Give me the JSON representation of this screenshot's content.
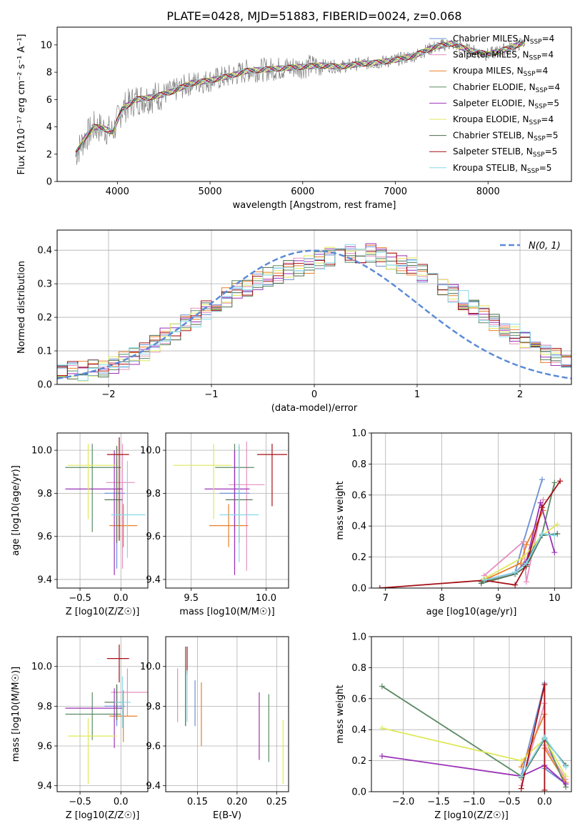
{
  "figure_title": "PLATE=0428, MJD=51883, FIBERID=0024, z=0.068",
  "model_legend": [
    {
      "label": "Chabrier MILES, N",
      "sub": "SSP",
      "tail": "=4",
      "color": "#6a8fd4"
    },
    {
      "label": "Salpeter MILES, N",
      "sub": "SSP",
      "tail": "=4",
      "color": "#e58fbf"
    },
    {
      "label": "Kroupa MILES, N",
      "sub": "SSP",
      "tail": "=4",
      "color": "#e87f27"
    },
    {
      "label": "Chabrier ELODIE, N",
      "sub": "SSP",
      "tail": "=4",
      "color": "#5a8a64"
    },
    {
      "label": "Salpeter ELODIE, N",
      "sub": "SSP",
      "tail": "=5",
      "color": "#9b32b6"
    },
    {
      "label": "Kroupa ELODIE, N",
      "sub": "SSP",
      "tail": "=4",
      "color": "#dfe85a"
    },
    {
      "label": "Chabrier STELIB, N",
      "sub": "SSP",
      "tail": "=5",
      "color": "#4c6b4c"
    },
    {
      "label": "Salpeter STELIB, N",
      "sub": "SSP",
      "tail": "=5",
      "color": "#a50f15"
    },
    {
      "label": "Kroupa STELIB, N",
      "sub": "SSP",
      "tail": "=5",
      "color": "#86d8e8"
    }
  ],
  "chart_data": [
    {
      "id": "spectrum",
      "type": "line",
      "xlabel": "wavelength [Angstrom, rest frame]",
      "ylabel": "Flux [fλ10⁻¹⁷ erg cm⁻² s⁻¹ A⁻¹]",
      "xlim": [
        3350,
        8900
      ],
      "ylim": [
        0,
        11.3
      ],
      "xticks": [
        "4000",
        "5000",
        "6000",
        "7000",
        "8000"
      ],
      "yticks": [
        "0",
        "2",
        "4",
        "6",
        "8",
        "10"
      ],
      "series": [
        {
          "name": "data",
          "color": "#808080",
          "x": [
            3550,
            3650,
            3750,
            3850,
            3950,
            4050,
            4200,
            4400,
            4600,
            4800,
            5000,
            5200,
            5400,
            5600,
            5800,
            6000,
            6200,
            6400,
            6600,
            6800,
            7000,
            7200,
            7400,
            7600,
            7800,
            8000,
            8200,
            8400
          ],
          "y": [
            2.0,
            3.2,
            4.0,
            3.9,
            3.6,
            5.3,
            6.0,
            6.2,
            6.6,
            7.2,
            7.4,
            7.7,
            8.1,
            8.2,
            8.3,
            8.4,
            8.5,
            8.4,
            8.6,
            8.7,
            8.9,
            9.2,
            9.8,
            10.1,
            9.6,
            9.3,
            9.7,
            10.2
          ]
        }
      ]
    },
    {
      "id": "residual_histogram",
      "type": "bar",
      "xlabel": "(data-model)/error",
      "ylabel": "Normed distribution",
      "xlim": [
        -2.5,
        2.5
      ],
      "ylim": [
        0,
        0.46
      ],
      "xticks": [
        "−2",
        "−1",
        "0",
        "1",
        "2"
      ],
      "yticks": [
        "0.0",
        "0.1",
        "0.2",
        "0.3",
        "0.4"
      ],
      "legend": "N(0, 1)",
      "reference_curve": {
        "name": "N(0,1)",
        "mean": 0,
        "sigma": 1,
        "color": "#5b8bd8"
      },
      "bins_edge_start": -2.5,
      "bin_width": 0.1,
      "envelope": [
        0.04,
        0.04,
        0.04,
        0.05,
        0.05,
        0.06,
        0.07,
        0.08,
        0.1,
        0.12,
        0.14,
        0.16,
        0.18,
        0.2,
        0.22,
        0.24,
        0.26,
        0.28,
        0.29,
        0.31,
        0.32,
        0.33,
        0.34,
        0.35,
        0.36,
        0.37,
        0.38,
        0.39,
        0.39,
        0.39,
        0.39,
        0.38,
        0.37,
        0.36,
        0.35,
        0.33,
        0.31,
        0.29,
        0.27,
        0.25,
        0.23,
        0.21,
        0.19,
        0.17,
        0.15,
        0.13,
        0.11,
        0.09,
        0.08,
        0.06
      ]
    },
    {
      "id": "age_vs_Z",
      "type": "scatter",
      "xlabel": "Z [log10(Z/Z☉)]",
      "ylabel": "age  [log10(age/yr)]",
      "xlim": [
        -0.78,
        0.33
      ],
      "ylim": [
        9.36,
        10.08
      ],
      "xticks": [
        "−0.5",
        "0.0"
      ],
      "yticks": [
        "9.4",
        "9.6",
        "9.8",
        "10.0"
      ],
      "points": [
        {
          "x": -0.05,
          "y": 9.8,
          "xerr": [
            0.15,
            0.1
          ],
          "yerr": [
            0.35,
            0.15
          ],
          "color": "#6a8fd4"
        },
        {
          "x": 0.02,
          "y": 9.85,
          "xerr": [
            0.2,
            0.15
          ],
          "yerr": [
            0.4,
            0.18
          ],
          "color": "#e58fbf"
        },
        {
          "x": 0.03,
          "y": 9.65,
          "xerr": [
            0.17,
            0.17
          ],
          "yerr": [
            0.1,
            0.1
          ],
          "color": "#e87f27"
        },
        {
          "x": -0.35,
          "y": 9.92,
          "xerr": [
            0.33,
            0.35
          ],
          "yerr": [
            0.3,
            0.11
          ],
          "color": "#5a8a64"
        },
        {
          "x": -0.08,
          "y": 9.82,
          "xerr": [
            0.6,
            0.1
          ],
          "yerr": [
            0.4,
            0.18
          ],
          "color": "#9b32b6"
        },
        {
          "x": -0.4,
          "y": 9.93,
          "xerr": [
            0.25,
            0.35
          ],
          "yerr": [
            0.25,
            0.1
          ],
          "color": "#dfe85a"
        },
        {
          "x": -0.05,
          "y": 9.77,
          "xerr": [
            0.15,
            0.07
          ],
          "yerr": [
            0.2,
            0.25
          ],
          "color": "#4c6b4c"
        },
        {
          "x": -0.02,
          "y": 9.98,
          "xerr": [
            0.15,
            0.12
          ],
          "yerr": [
            0.4,
            0.08
          ],
          "color": "#a50f15"
        },
        {
          "x": 0.08,
          "y": 9.7,
          "xerr": [
            0.2,
            0.22
          ],
          "yerr": [
            0.2,
            0.25
          ],
          "color": "#86d8e8"
        }
      ]
    },
    {
      "id": "age_vs_mass",
      "type": "scatter",
      "xlabel": "mass [log10(M/M☉)]",
      "ylabel": "",
      "xlim": [
        9.33,
        10.15
      ],
      "ylim": [
        9.36,
        10.08
      ],
      "xticks": [
        "9.5",
        "10.0"
      ],
      "yticks": [
        "9.4",
        "9.6",
        "9.8",
        "10.0"
      ],
      "points": [
        {
          "x": 9.79,
          "y": 9.8,
          "xerr": [
            0.1,
            0.1
          ],
          "yerr": [
            0.35,
            0.2
          ],
          "color": "#6a8fd4"
        },
        {
          "x": 9.87,
          "y": 9.84,
          "xerr": [
            0.12,
            0.12
          ],
          "yerr": [
            0.4,
            0.2
          ],
          "color": "#e58fbf"
        },
        {
          "x": 9.75,
          "y": 9.65,
          "xerr": [
            0.13,
            0.13
          ],
          "yerr": [
            0.1,
            0.1
          ],
          "color": "#e87f27"
        },
        {
          "x": 9.79,
          "y": 9.92,
          "xerr": [
            0.13,
            0.13
          ],
          "yerr": [
            0.3,
            0.11
          ],
          "color": "#5a8a64"
        },
        {
          "x": 9.79,
          "y": 9.82,
          "xerr": [
            0.2,
            0.1
          ],
          "yerr": [
            0.4,
            0.18
          ],
          "color": "#9b32b6"
        },
        {
          "x": 9.65,
          "y": 9.93,
          "xerr": [
            0.27,
            0.12
          ],
          "yerr": [
            0.25,
            0.1
          ],
          "color": "#dfe85a"
        },
        {
          "x": 9.82,
          "y": 9.77,
          "xerr": [
            0.09,
            0.09
          ],
          "yerr": [
            0.2,
            0.25
          ],
          "color": "#4c6b4c"
        },
        {
          "x": 10.04,
          "y": 9.98,
          "xerr": [
            0.1,
            0.1
          ],
          "yerr": [
            0.24,
            0.05
          ],
          "color": "#a50f15"
        },
        {
          "x": 9.82,
          "y": 9.7,
          "xerr": [
            0.13,
            0.13
          ],
          "yerr": [
            0.22,
            0.33
          ],
          "color": "#86d8e8"
        }
      ]
    },
    {
      "id": "mass_weight_vs_age",
      "type": "line",
      "xlabel": "age  [log10(age/yr)]",
      "ylabel": "mass weight",
      "xlim": [
        6.75,
        10.3
      ],
      "ylim": [
        0,
        1
      ],
      "xticks": [
        "7",
        "8",
        "9",
        "10"
      ],
      "yticks": [
        "0.0",
        "0.2",
        "0.4",
        "0.6",
        "0.8",
        "1.0"
      ],
      "series": [
        {
          "color": "#6a8fd4",
          "x": [
            8.75,
            9.3,
            9.45,
            9.78
          ],
          "y": [
            0.05,
            0.1,
            0.3,
            0.7
          ]
        },
        {
          "color": "#e58fbf",
          "x": [
            8.75,
            9.45,
            9.5,
            9.8
          ],
          "y": [
            0.08,
            0.3,
            0.04,
            0.57
          ]
        },
        {
          "color": "#e87f27",
          "x": [
            8.8,
            9.4,
            9.5,
            9.8
          ],
          "y": [
            0.06,
            0.16,
            0.28,
            0.5
          ]
        },
        {
          "color": "#5a8a64",
          "x": [
            8.7,
            9.3,
            9.45,
            9.78,
            10.0
          ],
          "y": [
            0.04,
            0.1,
            0.15,
            0.35,
            0.68
          ]
        },
        {
          "color": "#9b32b6",
          "x": [
            8.75,
            9.3,
            9.5,
            9.75,
            10.0
          ],
          "y": [
            0.05,
            0.1,
            0.17,
            0.55,
            0.23
          ]
        },
        {
          "color": "#dfe85a",
          "x": [
            8.75,
            9.45,
            9.78,
            10.05
          ],
          "y": [
            0.06,
            0.2,
            0.34,
            0.41
          ]
        },
        {
          "color": "#4c6b4c",
          "x": [
            8.7,
            9.3,
            9.5,
            9.78,
            10.05
          ],
          "y": [
            0.03,
            0.09,
            0.14,
            0.34,
            0.35
          ]
        },
        {
          "color": "#a50f15",
          "x": [
            6.9,
            8.75,
            9.3,
            9.5,
            9.78,
            10.1
          ],
          "y": [
            0.0,
            0.05,
            0.02,
            0.15,
            0.52,
            0.69
          ]
        },
        {
          "color": "#86d8e8",
          "x": [
            8.75,
            9.3,
            9.5,
            9.78,
            10.0
          ],
          "y": [
            0.05,
            0.1,
            0.16,
            0.35,
            0.34
          ]
        }
      ]
    },
    {
      "id": "mass_vs_Z",
      "type": "scatter",
      "xlabel": "Z [log10(Z/Z☉)]",
      "ylabel": "mass [log10(M/M☉)]",
      "xlim": [
        -0.78,
        0.33
      ],
      "ylim": [
        9.37,
        10.15
      ],
      "xticks": [
        "−0.5",
        "0.0"
      ],
      "yticks": [
        "9.4",
        "9.6",
        "9.8",
        "10.0"
      ],
      "points": [
        {
          "x": -0.05,
          "y": 9.8,
          "xerr": [
            0.15,
            0.1
          ],
          "yerr": [
            0.1,
            0.1
          ],
          "color": "#6a8fd4"
        },
        {
          "x": 0.08,
          "y": 9.87,
          "xerr": [
            0.2,
            0.25
          ],
          "yerr": [
            0.12,
            0.12
          ],
          "color": "#e58fbf"
        },
        {
          "x": 0.03,
          "y": 9.75,
          "xerr": [
            0.17,
            0.17
          ],
          "yerr": [
            0.13,
            0.13
          ],
          "color": "#e87f27"
        },
        {
          "x": -0.35,
          "y": 9.76,
          "xerr": [
            0.33,
            0.35
          ],
          "yerr": [
            0.13,
            0.11
          ],
          "color": "#5a8a64"
        },
        {
          "x": -0.08,
          "y": 9.79,
          "xerr": [
            0.6,
            0.1
          ],
          "yerr": [
            0.2,
            0.1
          ],
          "color": "#9b32b6"
        },
        {
          "x": -0.4,
          "y": 9.65,
          "xerr": [
            0.25,
            0.35
          ],
          "yerr": [
            0.24,
            0.09
          ],
          "color": "#dfe85a"
        },
        {
          "x": -0.05,
          "y": 9.82,
          "xerr": [
            0.15,
            0.07
          ],
          "yerr": [
            0.09,
            0.09
          ],
          "color": "#4c6b4c"
        },
        {
          "x": -0.02,
          "y": 10.04,
          "xerr": [
            0.15,
            0.12
          ],
          "yerr": [
            0.12,
            0.07
          ],
          "color": "#a50f15"
        },
        {
          "x": 0.02,
          "y": 9.82,
          "xerr": [
            0.1,
            0.1
          ],
          "yerr": [
            0.13,
            0.13
          ],
          "color": "#86d8e8"
        }
      ]
    },
    {
      "id": "mass_vs_ebv",
      "type": "scatter",
      "xlabel": "E(B-V)",
      "ylabel": "",
      "xlim": [
        0.11,
        0.265
      ],
      "ylim": [
        9.37,
        10.15
      ],
      "xticks": [
        "0.15",
        "0.20",
        "0.25"
      ],
      "yticks": [
        "9.4",
        "9.6",
        "9.8",
        "10.0"
      ],
      "points": [
        {
          "x": 0.147,
          "y": 9.8,
          "yerr": [
            0.1,
            0.13
          ],
          "color": "#6a8fd4"
        },
        {
          "x": 0.125,
          "y": 9.87,
          "yerr": [
            0.15,
            0.12
          ],
          "color": "#e58fbf"
        },
        {
          "x": 0.155,
          "y": 9.76,
          "yerr": [
            0.16,
            0.16
          ],
          "color": "#e87f27"
        },
        {
          "x": 0.24,
          "y": 9.69,
          "yerr": [
            0.17,
            0.17
          ],
          "color": "#5a8a64"
        },
        {
          "x": 0.228,
          "y": 9.7,
          "yerr": [
            0.17,
            0.17
          ],
          "color": "#9b32b6"
        },
        {
          "x": 0.258,
          "y": 9.57,
          "yerr": [
            0.16,
            0.16
          ],
          "color": "#dfe85a"
        },
        {
          "x": 0.135,
          "y": 9.9,
          "yerr": [
            0.2,
            0.2
          ],
          "color": "#4c6b4c"
        },
        {
          "x": 0.137,
          "y": 10.03,
          "yerr": [
            0.07,
            0.07
          ],
          "color": "#a50f15"
        },
        {
          "x": 0.137,
          "y": 9.85,
          "yerr": [
            0.13,
            0.13
          ],
          "color": "#86d8e8"
        }
      ]
    },
    {
      "id": "mass_weight_vs_Z",
      "type": "line",
      "xlabel": "Z [log10(Z/Z☉)]",
      "ylabel": "mass weight",
      "xlim": [
        -2.45,
        0.38
      ],
      "ylim": [
        0,
        1
      ],
      "xticks": [
        "−2.0",
        "−1.5",
        "−1.0",
        "−0.5",
        "0.0"
      ],
      "yticks": [
        "0.0",
        "0.2",
        "0.4",
        "0.6",
        "0.8",
        "1.0"
      ],
      "series": [
        {
          "color": "#6a8fd4",
          "x": [
            -0.33,
            0.0,
            0.0,
            0.3
          ],
          "y": [
            0.1,
            0.7,
            0.15,
            0.05
          ]
        },
        {
          "color": "#e58fbf",
          "x": [
            -0.33,
            0.0,
            0.0,
            0.3
          ],
          "y": [
            0.04,
            0.57,
            0.3,
            0.08
          ]
        },
        {
          "color": "#e87f27",
          "x": [
            -0.33,
            0.0,
            0.0,
            0.3
          ],
          "y": [
            0.16,
            0.5,
            0.28,
            0.06
          ]
        },
        {
          "color": "#5a8a64",
          "x": [
            -2.3,
            -0.33,
            0.0,
            0.3
          ],
          "y": [
            0.68,
            0.1,
            0.35,
            0.03
          ]
        },
        {
          "color": "#9b32b6",
          "x": [
            -2.3,
            -0.33,
            0.0,
            0.3
          ],
          "y": [
            0.23,
            0.1,
            0.17,
            0.05
          ]
        },
        {
          "color": "#dfe85a",
          "x": [
            -2.3,
            -0.33,
            0.0,
            0.3
          ],
          "y": [
            0.41,
            0.2,
            0.34,
            0.1
          ]
        },
        {
          "color": "#4c6b4c",
          "x": [
            -0.33,
            0.0,
            0.3
          ],
          "y": [
            0.09,
            0.34,
            0.17
          ]
        },
        {
          "color": "#a50f15",
          "x": [
            -0.33,
            0.0,
            0.0
          ],
          "y": [
            0.02,
            0.69,
            0.01
          ]
        },
        {
          "color": "#86d8e8",
          "x": [
            -0.33,
            0.0,
            0.3
          ],
          "y": [
            0.1,
            0.35,
            0.16
          ]
        }
      ]
    }
  ]
}
